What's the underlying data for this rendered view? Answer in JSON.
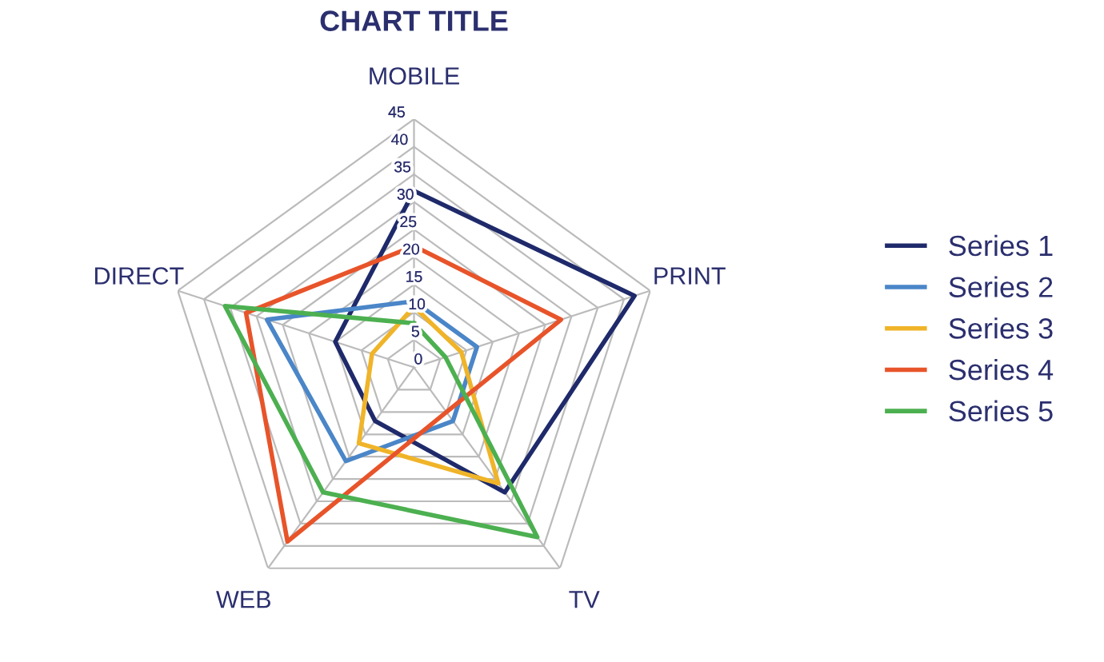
{
  "chart_data": {
    "type": "radar",
    "title": "CHART TITLE",
    "categories": [
      "MOBILE",
      "PRINT",
      "TV",
      "WEB",
      "DIRECT"
    ],
    "series": [
      {
        "name": "Series 1",
        "color": "#1f2a6b",
        "values": [
          32,
          42,
          28,
          12,
          15
        ]
      },
      {
        "name": "Series 2",
        "color": "#4a86c8",
        "values": [
          12,
          12,
          12,
          21,
          28
        ]
      },
      {
        "name": "Series 3",
        "color": "#f0b429",
        "values": [
          11,
          9,
          26,
          17,
          8
        ]
      },
      {
        "name": "Series 4",
        "color": "#e8542a",
        "values": [
          22,
          28,
          10,
          39,
          32
        ]
      },
      {
        "name": "Series 5",
        "color": "#4cb050",
        "values": [
          8,
          6,
          38,
          28,
          36
        ]
      }
    ],
    "ylim": [
      0,
      45
    ],
    "yticks": [
      0,
      5,
      10,
      15,
      20,
      25,
      30,
      35,
      40,
      45
    ],
    "grid": true,
    "legend": "right",
    "marker": "none",
    "line_style": "solid"
  }
}
